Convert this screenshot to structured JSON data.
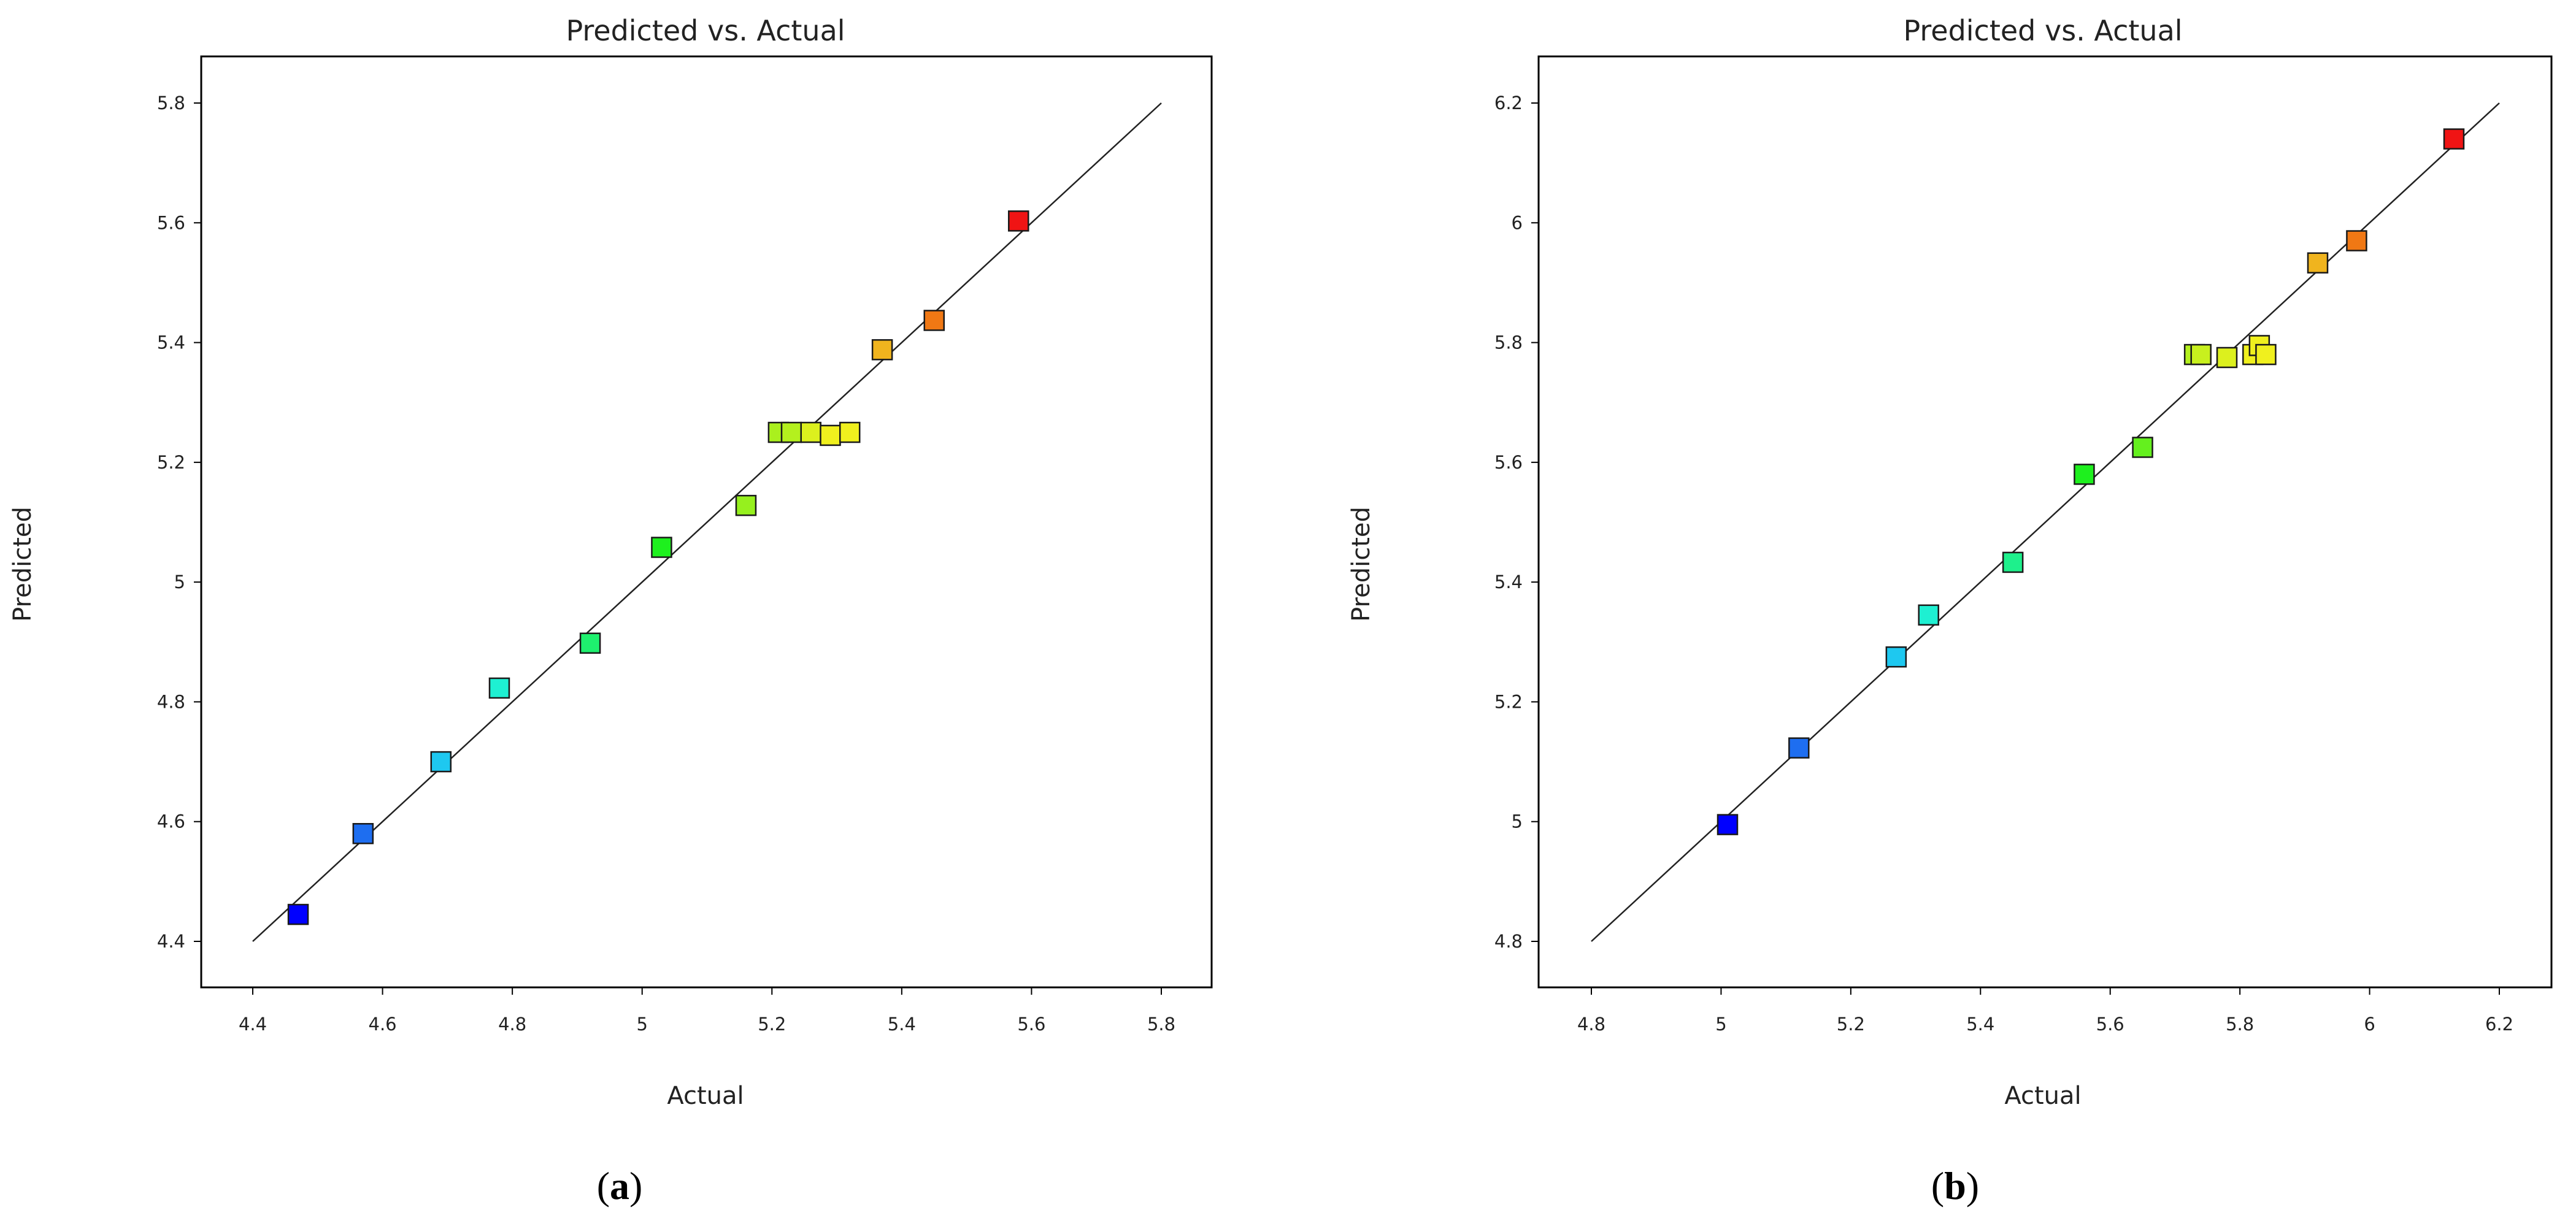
{
  "chart_data": [
    {
      "type": "scatter",
      "title": "Predicted vs. Actual",
      "xlabel": "Actual",
      "ylabel": "Predicted",
      "xlim": [
        4.4,
        5.8
      ],
      "ylim": [
        4.4,
        5.8
      ],
      "xticks": [
        "4.4",
        "4.6",
        "4.8",
        "5",
        "5.2",
        "5.4",
        "5.6",
        "5.8"
      ],
      "yticks": [
        "4.4",
        "4.6",
        "4.8",
        "5",
        "5.2",
        "5.4",
        "5.6",
        "5.8"
      ],
      "grid": false,
      "reference_line": "y = x",
      "caption": {
        "open": "(",
        "letter": "a",
        "close": ")"
      },
      "points": [
        {
          "x": 4.47,
          "y": 4.445,
          "color": "#0000ff"
        },
        {
          "x": 4.57,
          "y": 4.58,
          "color": "#1e6ef0"
        },
        {
          "x": 4.69,
          "y": 4.7,
          "color": "#1ec8f0"
        },
        {
          "x": 4.78,
          "y": 4.823,
          "color": "#1ef0d2"
        },
        {
          "x": 4.92,
          "y": 4.898,
          "color": "#1ef06e"
        },
        {
          "x": 5.03,
          "y": 5.058,
          "color": "#1ef01e"
        },
        {
          "x": 5.16,
          "y": 5.128,
          "color": "#96f01e"
        },
        {
          "x": 5.21,
          "y": 5.25,
          "color": "#aaf01e"
        },
        {
          "x": 5.23,
          "y": 5.25,
          "color": "#b4f01e"
        },
        {
          "x": 5.26,
          "y": 5.25,
          "color": "#dcf01e"
        },
        {
          "x": 5.29,
          "y": 5.245,
          "color": "#f0f01e"
        },
        {
          "x": 5.32,
          "y": 5.25,
          "color": "#f0f01e"
        },
        {
          "x": 5.37,
          "y": 5.388,
          "color": "#f0b41e"
        },
        {
          "x": 5.45,
          "y": 5.437,
          "color": "#f07814"
        },
        {
          "x": 5.58,
          "y": 5.603,
          "color": "#f01414"
        }
      ]
    },
    {
      "type": "scatter",
      "title": "Predicted vs. Actual",
      "xlabel": "Actual",
      "ylabel": "Predicted",
      "xlim": [
        4.8,
        6.2
      ],
      "ylim": [
        4.8,
        6.2
      ],
      "xticks": [
        "4.8",
        "5",
        "5.2",
        "5.4",
        "5.6",
        "5.8",
        "6",
        "6.2"
      ],
      "yticks": [
        "4.8",
        "5",
        "5.2",
        "5.4",
        "5.6",
        "5.8",
        "6",
        "6.2"
      ],
      "grid": false,
      "reference_line": "y = x",
      "caption": {
        "open": "(",
        "letter": "b",
        "close": ")"
      },
      "points": [
        {
          "x": 5.01,
          "y": 4.995,
          "color": "#0000ff"
        },
        {
          "x": 5.12,
          "y": 5.123,
          "color": "#1e6ef0"
        },
        {
          "x": 5.27,
          "y": 5.275,
          "color": "#1ec8f0"
        },
        {
          "x": 5.32,
          "y": 5.345,
          "color": "#1ef0d2"
        },
        {
          "x": 5.45,
          "y": 5.433,
          "color": "#1ef08c"
        },
        {
          "x": 5.56,
          "y": 5.58,
          "color": "#1ef01e"
        },
        {
          "x": 5.65,
          "y": 5.625,
          "color": "#64f01e"
        },
        {
          "x": 5.73,
          "y": 5.78,
          "color": "#b4f01e"
        },
        {
          "x": 5.74,
          "y": 5.78,
          "color": "#c8f01e"
        },
        {
          "x": 5.78,
          "y": 5.775,
          "color": "#dcf01e"
        },
        {
          "x": 5.82,
          "y": 5.78,
          "color": "#f0f01e"
        },
        {
          "x": 5.83,
          "y": 5.795,
          "color": "#f0f01e"
        },
        {
          "x": 5.84,
          "y": 5.78,
          "color": "#f0f01e"
        },
        {
          "x": 5.92,
          "y": 5.933,
          "color": "#f0b41e"
        },
        {
          "x": 5.98,
          "y": 5.97,
          "color": "#f07814"
        },
        {
          "x": 6.13,
          "y": 6.14,
          "color": "#f01414"
        }
      ]
    }
  ]
}
